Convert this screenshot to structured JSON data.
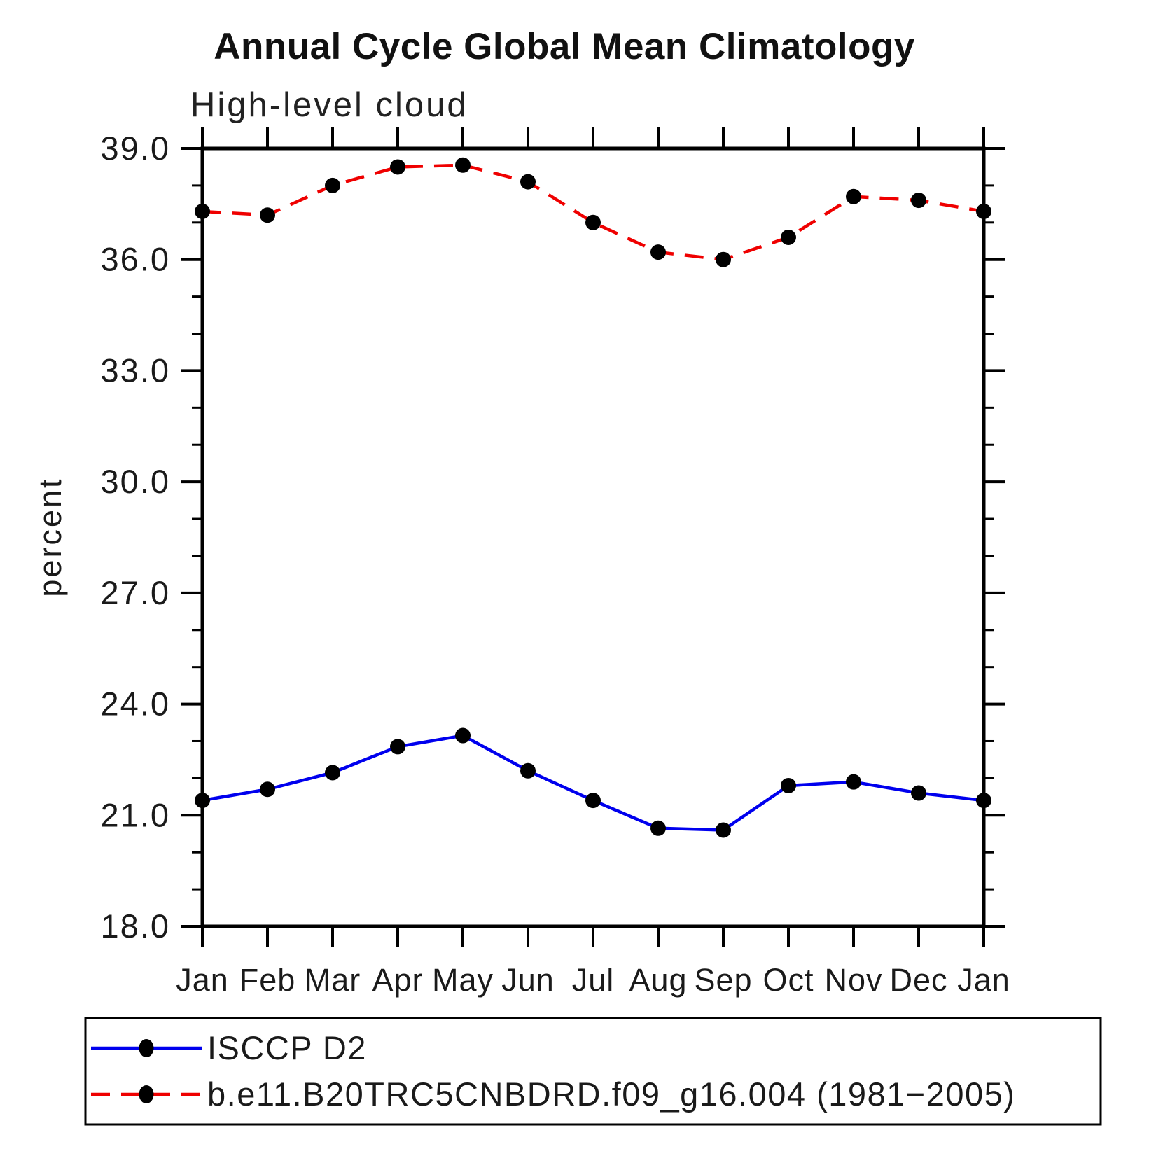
{
  "title": "Annual Cycle Global Mean Climatology",
  "subtitle": "High-level cloud",
  "ylabel": "percent",
  "chart_data": {
    "type": "line",
    "categories": [
      "Jan",
      "Feb",
      "Mar",
      "Apr",
      "May",
      "Jun",
      "Jul",
      "Aug",
      "Sep",
      "Oct",
      "Nov",
      "Dec",
      "Jan"
    ],
    "series": [
      {
        "name": "ISCCP D2",
        "color": "#0000ee",
        "line_style": "solid",
        "marker": "black-filled-circle",
        "values": [
          21.4,
          21.7,
          22.15,
          22.85,
          23.15,
          22.2,
          21.4,
          20.65,
          20.6,
          21.8,
          21.9,
          21.6,
          21.4
        ]
      },
      {
        "name": "b.e11.B20TRC5CNBDRD.f09_g16.004 (1981−2005)",
        "color": "#ef0000",
        "line_style": "dashed",
        "marker": "black-filled-circle",
        "values": [
          37.3,
          37.2,
          38.0,
          38.5,
          38.55,
          38.1,
          37.0,
          36.2,
          36.0,
          36.6,
          37.7,
          37.6,
          37.3
        ]
      }
    ],
    "ylim": [
      18.0,
      39.0
    ],
    "ytick_major": [
      18.0,
      21.0,
      24.0,
      27.0,
      30.0,
      33.0,
      36.0,
      39.0
    ],
    "ytick_major_labels": [
      "18.0",
      "21.0",
      "24.0",
      "27.0",
      "30.0",
      "33.0",
      "36.0",
      "39.0"
    ],
    "ytick_minor_step": 1.0,
    "grid": false,
    "legend_position": "bottom-left-box",
    "marker_color": "#000000",
    "axis_color": "#000000"
  }
}
